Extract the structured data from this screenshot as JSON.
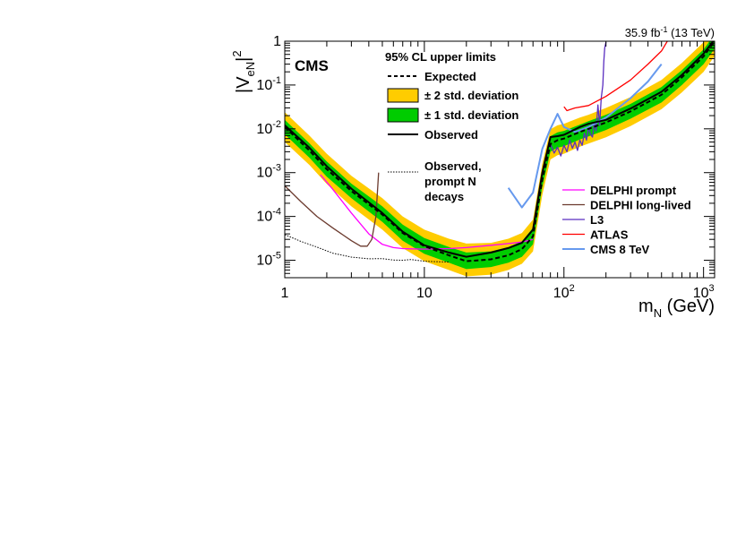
{
  "chart_data": {
    "type": "line",
    "cms_label": "CMS",
    "lumi": {
      "value": "35.9 fb",
      "exp": "-1",
      "energy": "(13 TeV)"
    },
    "xlabel": {
      "main": "m",
      "sub": "N",
      "unit": "(GeV)"
    },
    "ylabel": {
      "main": "|V",
      "sub": "eN",
      "end": "|",
      "exp": "2"
    },
    "xscale": "log",
    "yscale": "log",
    "xlim": [
      1,
      1200
    ],
    "ylim": [
      4e-06,
      1
    ],
    "x_ticks": [
      {
        "v": 1,
        "base": "1",
        "exp": ""
      },
      {
        "v": 10,
        "base": "10",
        "exp": ""
      },
      {
        "v": 100,
        "base": "10",
        "exp": "2"
      },
      {
        "v": 1000,
        "base": "10",
        "exp": "3"
      }
    ],
    "y_ticks": [
      {
        "v": 1e-05,
        "base": "10",
        "exp": "-5"
      },
      {
        "v": 0.0001,
        "base": "10",
        "exp": "-4"
      },
      {
        "v": 0.001,
        "base": "10",
        "exp": "-3"
      },
      {
        "v": 0.01,
        "base": "10",
        "exp": "-2"
      },
      {
        "v": 0.1,
        "base": "10",
        "exp": "-1"
      },
      {
        "v": 1,
        "base": "1",
        "exp": ""
      }
    ],
    "legend_main": {
      "title": "95% CL upper limits",
      "placement": "top-center",
      "items": [
        {
          "label": "Expected",
          "kind": "dashed"
        },
        {
          "label": "± 2 std. deviation",
          "kind": "band",
          "color": "#ffcc00"
        },
        {
          "label": "± 1 std. deviation",
          "kind": "band",
          "color": "#00cc00"
        },
        {
          "label": "Observed",
          "kind": "solid"
        },
        {
          "label": "Observed,\nprompt N\ndecays",
          "kind": "dotted"
        }
      ]
    },
    "legend_ext": {
      "placement": "right",
      "items": [
        {
          "label": "DELPHI prompt",
          "color": "#ff00ff"
        },
        {
          "label": "DELPHI long-lived",
          "color": "#6b3a2e"
        },
        {
          "label": "L3",
          "color": "#5a2ec0"
        },
        {
          "label": "ATLAS",
          "color": "#ff0000"
        },
        {
          "label": "CMS 8 TeV",
          "color": "#6699ee"
        }
      ]
    },
    "colors": {
      "band2": "#ffcc00",
      "band1": "#00cc00"
    },
    "bands": {
      "x": [
        1,
        1.5,
        2,
        3,
        5,
        7,
        10,
        15,
        20,
        30,
        40,
        50,
        60,
        70,
        80,
        90,
        100,
        130,
        150,
        200,
        300,
        500,
        700,
        1000,
        1200
      ],
      "expected": [
        0.011,
        0.0032,
        0.0012,
        0.00038,
        0.00011,
        4.2e-05,
        2.1e-05,
        1.3e-05,
        9.5e-06,
        1.05e-05,
        1.3e-05,
        1.8e-05,
        3.5e-05,
        0.0007,
        0.0045,
        0.0055,
        0.006,
        0.0085,
        0.01,
        0.014,
        0.025,
        0.06,
        0.15,
        0.45,
        1.0
      ],
      "p1": [
        0.016,
        0.0047,
        0.0018,
        0.00056,
        0.00017,
        6.5e-05,
        3.2e-05,
        2e-05,
        1.5e-05,
        1.6e-05,
        2e-05,
        2.7e-05,
        5.5e-05,
        0.0011,
        0.0068,
        0.0083,
        0.009,
        0.0125,
        0.015,
        0.021,
        0.037,
        0.09,
        0.22,
        0.65,
        1.45
      ],
      "m1": [
        0.0075,
        0.0022,
        0.00081,
        0.00026,
        7.5e-05,
        2.8e-05,
        1.4e-05,
        8.8e-06,
        6.3e-06,
        7e-06,
        8.8e-06,
        1.2e-05,
        2.3e-05,
        0.00047,
        0.003,
        0.0037,
        0.004,
        0.0057,
        0.0067,
        0.0094,
        0.017,
        0.04,
        0.1,
        0.3,
        0.68
      ],
      "p2": [
        0.024,
        0.007,
        0.0027,
        0.00085,
        0.00026,
        0.0001,
        5e-05,
        3.1e-05,
        2.4e-05,
        2.5e-05,
        3.1e-05,
        4.2e-05,
        8.5e-05,
        0.0016,
        0.0098,
        0.012,
        0.013,
        0.018,
        0.021,
        0.03,
        0.053,
        0.13,
        0.32,
        0.95,
        2.1
      ],
      "m2": [
        0.005,
        0.0015,
        0.00055,
        0.00017,
        5e-05,
        1.9e-05,
        9.5e-06,
        6e-06,
        4.3e-06,
        4.7e-06,
        6e-06,
        8.3e-06,
        1.6e-05,
        0.00031,
        0.002,
        0.0025,
        0.0027,
        0.0039,
        0.0046,
        0.0064,
        0.0115,
        0.028,
        0.068,
        0.2,
        0.46
      ]
    },
    "series": [
      {
        "name": "Observed",
        "style": "solid",
        "color": "#000000",
        "width": 2,
        "x": [
          1,
          1.5,
          2,
          3,
          5,
          7,
          10,
          15,
          20,
          30,
          40,
          50,
          60,
          70,
          80,
          90,
          100,
          130,
          150,
          200,
          300,
          500,
          700,
          1000,
          1200
        ],
        "y": [
          0.012,
          0.0037,
          0.0014,
          0.00043,
          0.00012,
          4.5e-05,
          2.2e-05,
          1.5e-05,
          1.2e-05,
          1.5e-05,
          1.9e-05,
          2.5e-05,
          5e-05,
          0.001,
          0.0065,
          0.0068,
          0.0073,
          0.011,
          0.013,
          0.016,
          0.029,
          0.07,
          0.17,
          0.52,
          1.1
        ]
      },
      {
        "name": "Expected",
        "style": "dashed",
        "color": "#000000",
        "width": 2,
        "x": [
          1,
          1.5,
          2,
          3,
          5,
          7,
          10,
          15,
          20,
          30,
          40,
          50,
          60,
          70,
          80,
          90,
          100,
          130,
          150,
          200,
          300,
          500,
          700,
          1000,
          1200
        ],
        "y": [
          0.011,
          0.0032,
          0.0012,
          0.00038,
          0.00011,
          4.2e-05,
          2.1e-05,
          1.3e-05,
          9.5e-06,
          1.05e-05,
          1.3e-05,
          1.8e-05,
          3.5e-05,
          0.0007,
          0.0045,
          0.0055,
          0.006,
          0.0085,
          0.01,
          0.014,
          0.025,
          0.06,
          0.15,
          0.45,
          1.0
        ]
      },
      {
        "name": "Observed, prompt N decays",
        "style": "dotted",
        "color": "#000000",
        "width": 1,
        "x": [
          1,
          1.3,
          1.7,
          2.2,
          3,
          4,
          5,
          6,
          7,
          8,
          10,
          12,
          15
        ],
        "y": [
          3.85e-05,
          2.7e-05,
          2e-05,
          1.45e-05,
          1.18e-05,
          1.08e-05,
          1.09e-05,
          1.01e-05,
          1e-05,
          1.04e-05,
          9.5e-06,
          9.3e-06,
          9.1e-06
        ]
      },
      {
        "name": "DELPHI prompt",
        "style": "solid",
        "color": "#ff00ff",
        "width": 1.3,
        "x": [
          1.8,
          2.2,
          3,
          4,
          5,
          6,
          7,
          8,
          10,
          15,
          20,
          30,
          40,
          50,
          60
        ],
        "y": [
          0.0009,
          0.00042,
          0.00012,
          4e-05,
          2.3e-05,
          1.95e-05,
          1.85e-05,
          1.82e-05,
          1.8e-05,
          1.85e-05,
          1.95e-05,
          2.2e-05,
          2.4e-05,
          2.6e-05,
          3e-05
        ]
      },
      {
        "name": "DELPHI long-lived",
        "style": "solid",
        "color": "#6b3a2e",
        "width": 1.3,
        "x": [
          1,
          1.3,
          1.7,
          2.2,
          3,
          3.5,
          3.9,
          4.2,
          4.5,
          4.7
        ],
        "y": [
          0.0005,
          0.00022,
          0.0001,
          5.5e-05,
          2.8e-05,
          2.1e-05,
          2.1e-05,
          3e-05,
          0.0001,
          0.001
        ]
      },
      {
        "name": "L3",
        "style": "solid",
        "color": "#5a2ec0",
        "width": 1.3,
        "x": [
          80,
          85,
          90,
          95,
          100,
          105,
          110,
          115,
          120,
          125,
          130,
          135,
          140,
          145,
          150,
          155,
          160,
          165,
          170,
          175,
          180,
          185,
          190,
          193,
          196,
          200
        ],
        "y": [
          0.0045,
          0.0028,
          0.0038,
          0.0024,
          0.0042,
          0.003,
          0.0055,
          0.0036,
          0.005,
          0.0032,
          0.0055,
          0.0042,
          0.008,
          0.0055,
          0.011,
          0.0075,
          0.0065,
          0.014,
          0.009,
          0.035,
          0.012,
          0.05,
          0.1,
          0.35,
          0.7,
          0.95
        ]
      },
      {
        "name": "ATLAS",
        "style": "solid",
        "color": "#ff0000",
        "width": 1.3,
        "x": [
          100,
          105,
          120,
          150,
          200,
          300,
          400,
          500,
          550
        ],
        "y": [
          0.032,
          0.026,
          0.03,
          0.034,
          0.055,
          0.13,
          0.3,
          0.6,
          1.0
        ]
      },
      {
        "name": "CMS 8 TeV",
        "style": "solid",
        "color": "#6699ee",
        "width": 2,
        "x": [
          40,
          50,
          60,
          70,
          80,
          90,
          100,
          120,
          150,
          200,
          300,
          400,
          500
        ],
        "y": [
          0.00045,
          0.00016,
          0.00035,
          0.0035,
          0.01,
          0.022,
          0.011,
          0.0085,
          0.011,
          0.018,
          0.05,
          0.12,
          0.3
        ]
      }
    ]
  }
}
